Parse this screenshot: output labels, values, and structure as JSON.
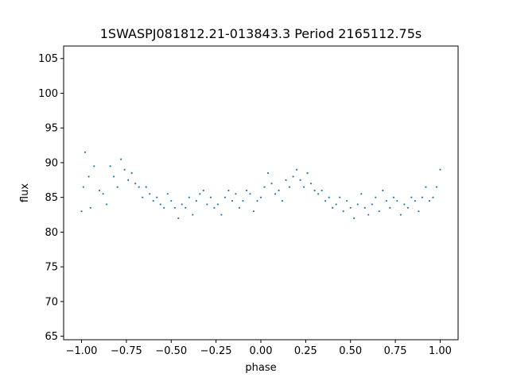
{
  "chart_data": {
    "type": "scatter",
    "title": "1SWASPJ081812.21-013843.3 Period 2165112.75s",
    "xlabel": "phase",
    "ylabel": "flux",
    "xlim": [
      -1.1,
      1.1
    ],
    "ylim": [
      64.5,
      106.8
    ],
    "xticks": [
      -1.0,
      -0.75,
      -0.5,
      -0.25,
      0.0,
      0.25,
      0.5,
      0.75,
      1.0
    ],
    "xtick_labels": [
      "−1.00",
      "−0.75",
      "−0.50",
      "−0.25",
      "0.00",
      "0.25",
      "0.50",
      "0.75",
      "1.00"
    ],
    "yticks": [
      65,
      70,
      75,
      80,
      85,
      90,
      95,
      100,
      105
    ],
    "ytick_labels": [
      "65",
      "70",
      "75",
      "80",
      "85",
      "90",
      "95",
      "100",
      "105"
    ],
    "grid": false,
    "marker_color": "#1f77b4",
    "series": [
      {
        "points": [
          [
            -1.0,
            83.0
          ],
          [
            -0.99,
            86.5
          ],
          [
            -0.98,
            91.5
          ],
          [
            -0.96,
            88.0
          ],
          [
            -0.95,
            83.5
          ],
          [
            -0.93,
            89.5
          ],
          [
            -0.9,
            86.0
          ],
          [
            -0.88,
            85.5
          ],
          [
            -0.86,
            84.0
          ],
          [
            -0.84,
            89.5
          ],
          [
            -0.82,
            88.0
          ],
          [
            -0.8,
            86.5
          ],
          [
            -0.78,
            90.5
          ],
          [
            -0.76,
            89.0
          ],
          [
            -0.74,
            87.5
          ],
          [
            -0.72,
            88.5
          ],
          [
            -0.7,
            87.0
          ],
          [
            -0.68,
            86.5
          ],
          [
            -0.66,
            85.0
          ],
          [
            -0.64,
            86.5
          ],
          [
            -0.62,
            85.5
          ],
          [
            -0.6,
            84.5
          ],
          [
            -0.58,
            85.0
          ],
          [
            -0.56,
            84.0
          ],
          [
            -0.54,
            83.5
          ],
          [
            -0.52,
            85.5
          ],
          [
            -0.5,
            84.5
          ],
          [
            -0.48,
            83.5
          ],
          [
            -0.46,
            82.0
          ],
          [
            -0.44,
            84.0
          ],
          [
            -0.42,
            83.5
          ],
          [
            -0.4,
            85.0
          ],
          [
            -0.38,
            82.5
          ],
          [
            -0.36,
            84.5
          ],
          [
            -0.34,
            85.5
          ],
          [
            -0.32,
            86.0
          ],
          [
            -0.3,
            84.0
          ],
          [
            -0.28,
            85.0
          ],
          [
            -0.26,
            83.5
          ],
          [
            -0.24,
            84.0
          ],
          [
            -0.22,
            82.5
          ],
          [
            -0.2,
            85.0
          ],
          [
            -0.18,
            86.0
          ],
          [
            -0.16,
            84.5
          ],
          [
            -0.14,
            85.5
          ],
          [
            -0.12,
            83.5
          ],
          [
            -0.1,
            84.5
          ],
          [
            -0.08,
            86.0
          ],
          [
            -0.06,
            85.5
          ],
          [
            -0.04,
            83.0
          ],
          [
            -0.02,
            84.5
          ],
          [
            0.0,
            85.0
          ],
          [
            0.02,
            86.5
          ],
          [
            0.04,
            88.5
          ],
          [
            0.06,
            87.0
          ],
          [
            0.08,
            85.5
          ],
          [
            0.1,
            86.0
          ],
          [
            0.12,
            84.5
          ],
          [
            0.14,
            87.5
          ],
          [
            0.16,
            86.5
          ],
          [
            0.18,
            88.0
          ],
          [
            0.2,
            89.0
          ],
          [
            0.22,
            87.5
          ],
          [
            0.24,
            86.5
          ],
          [
            0.26,
            88.5
          ],
          [
            0.28,
            87.0
          ],
          [
            0.3,
            86.0
          ],
          [
            0.32,
            85.5
          ],
          [
            0.34,
            86.0
          ],
          [
            0.36,
            84.5
          ],
          [
            0.38,
            85.0
          ],
          [
            0.4,
            83.5
          ],
          [
            0.42,
            84.0
          ],
          [
            0.44,
            85.0
          ],
          [
            0.46,
            83.0
          ],
          [
            0.48,
            84.5
          ],
          [
            0.5,
            83.5
          ],
          [
            0.52,
            82.0
          ],
          [
            0.54,
            84.0
          ],
          [
            0.56,
            85.5
          ],
          [
            0.58,
            83.5
          ],
          [
            0.6,
            82.5
          ],
          [
            0.62,
            84.0
          ],
          [
            0.64,
            85.0
          ],
          [
            0.66,
            83.0
          ],
          [
            0.68,
            86.0
          ],
          [
            0.7,
            84.5
          ],
          [
            0.72,
            83.5
          ],
          [
            0.74,
            85.0
          ],
          [
            0.76,
            84.5
          ],
          [
            0.78,
            82.5
          ],
          [
            0.8,
            84.0
          ],
          [
            0.82,
            83.5
          ],
          [
            0.84,
            85.0
          ],
          [
            0.86,
            84.5
          ],
          [
            0.88,
            83.0
          ],
          [
            0.9,
            85.0
          ],
          [
            0.92,
            86.5
          ],
          [
            0.94,
            84.5
          ],
          [
            0.96,
            85.0
          ],
          [
            0.98,
            86.5
          ],
          [
            1.0,
            89.0
          ]
        ]
      }
    ]
  }
}
